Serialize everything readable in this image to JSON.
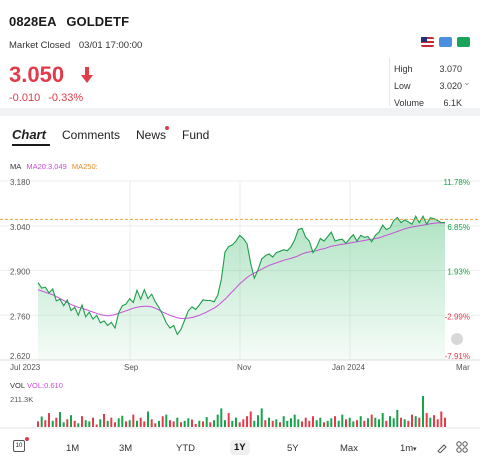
{
  "header": {
    "code": "0828EA",
    "name": "GOLDETF",
    "status": "Market Closed",
    "timestamp": "03/01 17:00:00",
    "price": "3.050",
    "change": "-0.010",
    "change_pct": "-0.33%",
    "stats": [
      {
        "label": "High",
        "value": "3.070"
      },
      {
        "label": "Low",
        "value": "3.020"
      },
      {
        "label": "Volume",
        "value": "6.1K"
      }
    ],
    "colors": {
      "down": "#e23b4a",
      "up": "#16a34a"
    }
  },
  "tabs": [
    {
      "label": "Chart",
      "active": true
    },
    {
      "label": "Comments",
      "active": false
    },
    {
      "label": "News",
      "active": false,
      "badge": true
    },
    {
      "label": "Fund",
      "active": false
    }
  ],
  "indicators": {
    "ma": "MA",
    "ma20": "MA20:3.049",
    "ma250": "MA250:",
    "vol": "VOL",
    "vol_value": "VOL:0.610"
  },
  "ranges": [
    "1M",
    "3M",
    "YTD",
    "1Y",
    "5Y",
    "Max",
    "1m"
  ],
  "active_range": "1Y",
  "chart_data": {
    "type": "line",
    "ylim": [
      2.62,
      3.18
    ],
    "y_ticks": [
      "3.180",
      "3.040",
      "2.900",
      "2.760",
      "2.620"
    ],
    "pct_ticks": [
      "11.78%",
      "6.85%",
      "1.93%",
      "-2.99%",
      "-7.91%"
    ],
    "x_ticks": [
      "Jul 2023",
      "Sep",
      "Nov",
      "Jan 2024",
      "Mar"
    ],
    "reference_price": 3.06,
    "volume_max_label": "211.3K",
    "series": [
      {
        "name": "Price",
        "values": [
          2.862,
          2.845,
          2.848,
          2.83,
          2.842,
          2.805,
          2.81,
          2.79,
          2.808,
          2.775,
          2.785,
          2.76,
          2.792,
          2.755,
          2.77,
          2.748,
          2.76,
          2.736,
          2.742,
          2.728,
          2.738,
          2.72,
          2.768,
          2.79,
          2.795,
          2.812,
          2.8,
          2.838,
          2.81,
          2.84,
          2.812,
          2.826,
          2.802,
          2.784,
          2.762,
          2.736,
          2.72,
          2.728,
          2.7,
          2.716,
          2.745,
          2.774,
          2.786,
          2.778,
          2.792,
          2.808,
          2.806,
          2.806,
          2.802,
          2.822,
          2.872,
          2.958,
          2.975,
          2.98,
          2.992,
          3.01,
          3.0,
          2.984,
          2.922,
          2.876,
          2.902,
          2.936,
          2.946,
          2.952,
          2.942,
          2.956,
          2.96,
          2.965,
          2.962,
          2.974,
          2.996,
          3.028,
          3.032,
          3.004,
          2.992,
          2.956,
          2.974,
          3.0,
          2.992,
          3.006,
          3.02,
          2.992,
          2.996,
          2.998,
          2.985,
          3.0,
          3.012,
          2.992,
          3.01,
          3.004,
          3.006,
          2.99,
          3.01,
          3.02,
          3.042,
          3.028,
          3.034,
          3.056,
          3.066,
          3.05,
          3.058,
          3.052,
          3.045,
          3.07,
          3.05,
          3.07,
          3.045,
          3.065,
          3.062,
          3.056,
          3.05,
          3.05
        ]
      },
      {
        "name": "MA20",
        "values": [
          2.84,
          2.836,
          2.832,
          2.828,
          2.824,
          2.818,
          2.812,
          2.806,
          2.8,
          2.794,
          2.789,
          2.785,
          2.782,
          2.778,
          2.774,
          2.77,
          2.766,
          2.762,
          2.76,
          2.758,
          2.76,
          2.762,
          2.766,
          2.77,
          2.774,
          2.778,
          2.782,
          2.785,
          2.787,
          2.788,
          2.788,
          2.786,
          2.782,
          2.776,
          2.77,
          2.765,
          2.76,
          2.756,
          2.752,
          2.75,
          2.75,
          2.751,
          2.753,
          2.756,
          2.76,
          2.765,
          2.77,
          2.776,
          2.782,
          2.79,
          2.8,
          2.81,
          2.822,
          2.834,
          2.846,
          2.858,
          2.868,
          2.878,
          2.886,
          2.892,
          2.898,
          2.904,
          2.91,
          2.916,
          2.92,
          2.924,
          2.928,
          2.932,
          2.935,
          2.938,
          2.942,
          2.946,
          2.952,
          2.956,
          2.958,
          2.96,
          2.962,
          2.966,
          2.968,
          2.972,
          2.976,
          2.978,
          2.98,
          2.982,
          2.984,
          2.986,
          2.988,
          2.99,
          2.992,
          2.994,
          2.996,
          2.998,
          3.0,
          3.002,
          3.006,
          3.01,
          3.014,
          3.018,
          3.022,
          3.026,
          3.03,
          3.034,
          3.036,
          3.038,
          3.04,
          3.042,
          3.044,
          3.046,
          3.048,
          3.049,
          3.049,
          3.049
        ]
      }
    ],
    "volume_values": [
      0.18,
      0.34,
      0.22,
      0.45,
      0.2,
      0.3,
      0.48,
      0.15,
      0.25,
      0.38,
      0.2,
      0.12,
      0.35,
      0.22,
      0.18,
      0.3,
      0.08,
      0.25,
      0.42,
      0.2,
      0.3,
      0.15,
      0.28,
      0.36,
      0.18,
      0.22,
      0.4,
      0.2,
      0.3,
      0.18,
      0.5,
      0.25,
      0.12,
      0.2,
      0.35,
      0.4,
      0.22,
      0.18,
      0.3,
      0.15,
      0.2,
      0.28,
      0.24,
      0.1,
      0.2,
      0.18,
      0.32,
      0.15,
      0.22,
      0.4,
      0.6,
      0.22,
      0.45,
      0.2,
      0.3,
      0.15,
      0.25,
      0.35,
      0.5,
      0.2,
      0.38,
      0.6,
      0.22,
      0.3,
      0.2,
      0.25,
      0.15,
      0.35,
      0.2,
      0.28,
      0.4,
      0.25,
      0.18,
      0.3,
      0.2,
      0.35,
      0.22,
      0.3,
      0.15,
      0.2,
      0.28,
      0.35,
      0.2,
      0.4,
      0.25,
      0.3,
      0.18,
      0.22,
      0.35,
      0.2,
      0.28,
      0.4,
      0.3,
      0.25,
      0.45,
      0.2,
      0.35,
      0.28,
      0.55,
      0.3,
      0.25,
      0.2,
      0.4,
      0.35,
      0.3,
      1.0,
      0.45,
      0.3,
      0.38,
      0.25,
      0.5,
      0.3
    ],
    "volume_down": [
      1,
      0,
      1,
      1,
      0,
      1,
      0,
      0,
      1,
      0,
      1,
      0,
      1,
      0,
      0,
      1,
      1,
      0,
      1,
      0,
      1,
      1,
      0,
      0,
      1,
      0,
      1,
      0,
      1,
      1,
      0,
      1,
      1,
      0,
      1,
      0,
      1,
      1,
      0,
      1,
      0,
      0,
      1,
      1,
      0,
      1,
      0,
      1,
      0,
      0,
      0,
      0,
      1,
      0,
      0,
      1,
      1,
      1,
      1,
      0,
      0,
      0,
      1,
      0,
      1,
      0,
      1,
      0,
      0,
      0,
      0,
      0,
      1,
      1,
      1,
      1,
      0,
      0,
      1,
      0,
      0,
      1,
      0,
      0,
      1,
      0,
      0,
      1,
      0,
      1,
      0,
      1,
      0,
      0,
      0,
      1,
      0,
      0,
      0,
      1,
      0,
      1,
      1,
      0,
      1,
      0,
      1,
      0,
      1,
      1,
      1,
      1
    ]
  }
}
